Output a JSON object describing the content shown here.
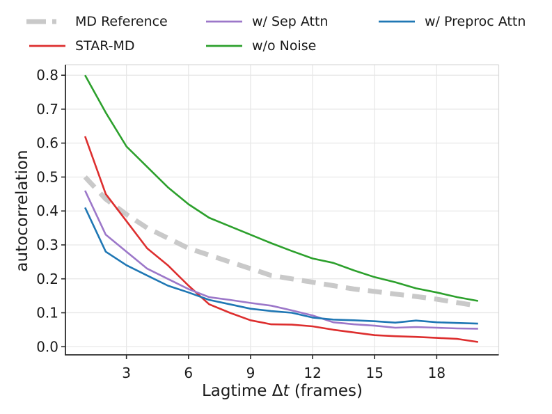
{
  "figure": {
    "background": "#ffffff",
    "text_color": "#1a1a1a",
    "grid_color": "#e6e6e6"
  },
  "legend": {
    "items": [
      {
        "label": "MD Reference",
        "color": "#c9c9c9",
        "style": "dashed"
      },
      {
        "label": "STAR-MD",
        "color": "#dd2e2e",
        "style": "solid"
      },
      {
        "label": "w/ Sep Attn",
        "color": "#9c77c9",
        "style": "solid"
      },
      {
        "label": "w/o Noise",
        "color": "#2ca02c",
        "style": "solid"
      },
      {
        "label": "w/ Preproc Attn",
        "color": "#1f77b4",
        "style": "solid"
      }
    ]
  },
  "chart_data": {
    "type": "line",
    "title": "",
    "xlabel": "Lagtime Δt (frames)",
    "xlabel_prefix": "Lagtime Δ",
    "xlabel_italic": "t",
    "xlabel_suffix": " (frames)",
    "ylabel": "autocorrelation",
    "x": [
      1,
      2,
      3,
      4,
      5,
      6,
      7,
      8,
      9,
      10,
      11,
      12,
      13,
      14,
      15,
      16,
      17,
      18,
      19,
      20
    ],
    "xticks": [
      3,
      6,
      9,
      12,
      15,
      18
    ],
    "yticks": [
      0.0,
      0.1,
      0.2,
      0.3,
      0.4,
      0.5,
      0.6,
      0.7,
      0.8
    ],
    "ytick_labels": [
      "0.0",
      "0.1",
      "0.2",
      "0.3",
      "0.4",
      "0.5",
      "0.6",
      "0.7",
      "0.8"
    ],
    "xlim": [
      0.05,
      21.0
    ],
    "ylim": [
      -0.024,
      0.831
    ],
    "grid": true,
    "legend_position": "top",
    "series": [
      {
        "name": "MD Reference",
        "color": "#c9c9c9",
        "dash": "20 12",
        "width": 7,
        "values": [
          0.5,
          0.435,
          0.39,
          0.35,
          0.32,
          0.29,
          0.27,
          0.25,
          0.23,
          0.21,
          0.2,
          0.19,
          0.18,
          0.17,
          0.163,
          0.155,
          0.148,
          0.14,
          0.13,
          0.12
        ]
      },
      {
        "name": "STAR-MD",
        "color": "#dd2e2e",
        "dash": null,
        "width": 2.6,
        "values": [
          0.62,
          0.45,
          0.37,
          0.29,
          0.24,
          0.18,
          0.125,
          0.1,
          0.078,
          0.066,
          0.065,
          0.06,
          0.05,
          0.042,
          0.034,
          0.031,
          0.029,
          0.026,
          0.023,
          0.014
        ]
      },
      {
        "name": "w/ Sep Attn",
        "color": "#9c77c9",
        "dash": null,
        "width": 2.6,
        "values": [
          0.46,
          0.33,
          0.28,
          0.23,
          0.2,
          0.17,
          0.146,
          0.138,
          0.129,
          0.121,
          0.107,
          0.092,
          0.072,
          0.066,
          0.062,
          0.056,
          0.058,
          0.056,
          0.054,
          0.053
        ]
      },
      {
        "name": "w/o Noise",
        "color": "#2ca02c",
        "dash": null,
        "width": 2.6,
        "values": [
          0.8,
          0.69,
          0.59,
          0.53,
          0.47,
          0.42,
          0.38,
          0.355,
          0.33,
          0.305,
          0.282,
          0.26,
          0.247,
          0.225,
          0.205,
          0.19,
          0.172,
          0.16,
          0.146,
          0.135
        ]
      },
      {
        "name": "w/ Preproc Attn",
        "color": "#1f77b4",
        "dash": null,
        "width": 2.6,
        "values": [
          0.41,
          0.28,
          0.24,
          0.21,
          0.18,
          0.16,
          0.138,
          0.125,
          0.112,
          0.105,
          0.1,
          0.086,
          0.08,
          0.078,
          0.075,
          0.071,
          0.077,
          0.072,
          0.07,
          0.068
        ]
      }
    ]
  }
}
